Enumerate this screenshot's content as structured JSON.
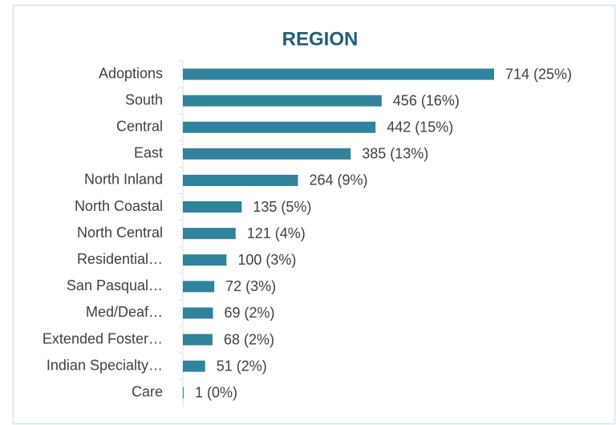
{
  "chart_data": {
    "type": "bar",
    "orientation": "horizontal",
    "title": "REGION",
    "categories": [
      "Adoptions",
      "South",
      "Central",
      "East",
      "North Inland",
      "North Coastal",
      "North Central",
      "Residential…",
      "San Pasqual…",
      "Med/Deaf…",
      "Extended Foster…",
      "Indian Specialty…",
      "Care"
    ],
    "values": [
      714,
      456,
      442,
      385,
      264,
      135,
      121,
      100,
      72,
      69,
      68,
      51,
      1
    ],
    "value_labels": [
      "714 (25%)",
      "456 (16%)",
      "442 (15%)",
      "385 (13%)",
      "264 (9%)",
      "135 (5%)",
      "121 (4%)",
      "100 (3%)",
      "72 (3%)",
      "69 (2%)",
      "68 (2%)",
      "51 (2%)",
      "1 (0%)"
    ],
    "color": "#31829b"
  }
}
